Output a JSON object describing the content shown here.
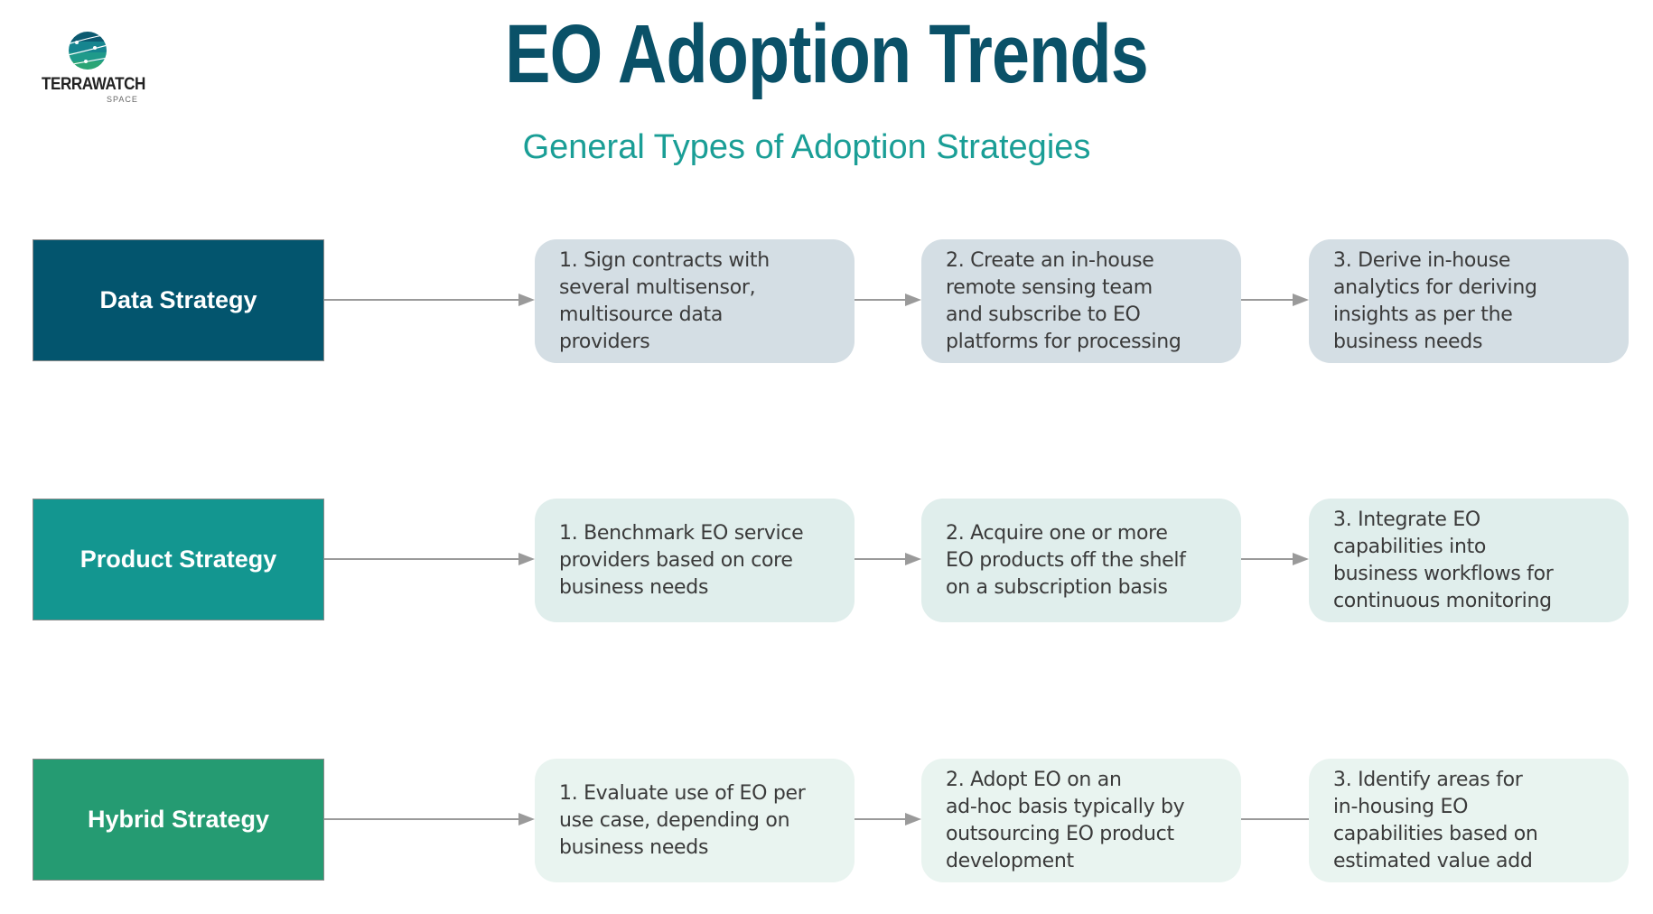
{
  "logo": {
    "name": "TERRAWATCH",
    "sub": "SPACE"
  },
  "header": {
    "title": "EO Adoption Trends",
    "subtitle": "General Types of Adoption Strategies"
  },
  "colors": {
    "title": "#0a5168",
    "subtitle": "#1a9e96",
    "data": "#03556e",
    "product": "#139690",
    "hybrid": "#259b72"
  },
  "rows": [
    {
      "label": "Data Strategy",
      "color": "#03556e",
      "step_bg": "#d4dee4",
      "steps": [
        "1. Sign contracts with\nseveral multisensor,\nmultisource data\nproviders",
        "2. Create an in-house\nremote sensing team\nand subscribe to EO\nplatforms for processing",
        "3. Derive in-house\nanalytics for deriving\ninsights as per the\nbusiness needs"
      ]
    },
    {
      "label": "Product Strategy",
      "color": "#139690",
      "step_bg": "#e0eeec",
      "steps": [
        "1. Benchmark EO service\nproviders based on core\nbusiness needs",
        "2. Acquire one or more\nEO products off the shelf\non a subscription basis",
        "3. Integrate EO\ncapabilities into\nbusiness workflows for\ncontinuous monitoring"
      ]
    },
    {
      "label": "Hybrid Strategy",
      "color": "#259b72",
      "step_bg": "#e9f4f0",
      "steps": [
        "1. Evaluate use of EO per\nuse case, depending on\nbusiness needs",
        "2. Adopt EO on an\nad-hoc basis typically by\noutsourcing EO product\ndevelopment",
        "3. Identify areas for\nin-housing EO\ncapabilities based on\nestimated value add"
      ]
    }
  ]
}
